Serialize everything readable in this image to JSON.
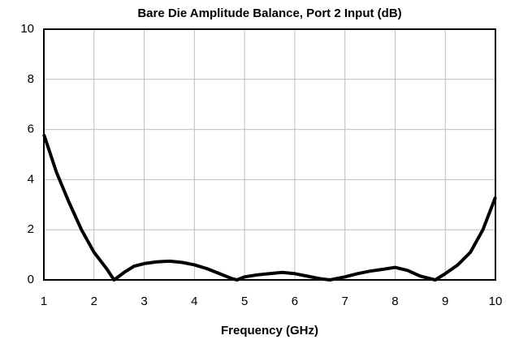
{
  "chart_data": {
    "type": "line",
    "title": "Bare Die Amplitude Balance, Port 2 Input (dB)",
    "x_label": "Frequency (GHz)",
    "x": [
      1,
      1.25,
      1.5,
      1.75,
      2,
      2.25,
      2.4,
      2.6,
      2.8,
      3,
      3.25,
      3.5,
      3.75,
      4,
      4.25,
      4.5,
      4.75,
      4.85,
      5,
      5.25,
      5.5,
      5.75,
      6,
      6.25,
      6.5,
      6.7,
      7,
      7.25,
      7.5,
      7.75,
      8,
      8.25,
      8.5,
      8.8,
      9,
      9.25,
      9.5,
      9.75,
      10
    ],
    "series": [
      {
        "name": null,
        "color": "#000000",
        "values": [
          5.8,
          4.3,
          3.1,
          2.0,
          1.1,
          0.45,
          0.0,
          0.3,
          0.55,
          0.65,
          0.72,
          0.75,
          0.7,
          0.6,
          0.45,
          0.25,
          0.05,
          0.0,
          0.12,
          0.2,
          0.25,
          0.3,
          0.25,
          0.15,
          0.05,
          0.0,
          0.12,
          0.25,
          0.35,
          0.42,
          0.5,
          0.38,
          0.15,
          0.0,
          0.25,
          0.6,
          1.1,
          2.0,
          3.3
        ]
      }
    ],
    "xlim": [
      1,
      10
    ],
    "xticks": [
      1,
      2,
      3,
      4,
      5,
      6,
      7,
      8,
      9,
      10
    ],
    "ylim": [
      0,
      10
    ],
    "yticks": [
      0,
      2,
      4,
      6,
      8,
      10
    ],
    "grid": true
  }
}
